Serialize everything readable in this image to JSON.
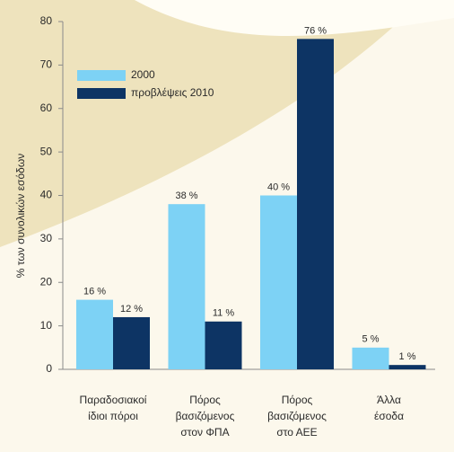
{
  "chart_data": {
    "type": "bar",
    "y_label": "% των συνολικών εσόδων",
    "categories": [
      [
        "Παραδοσιακοί",
        "ίδιοι πόροι"
      ],
      [
        "Πόρος",
        "βασιζόμενος",
        "στον ΦΠΑ"
      ],
      [
        "Πόρος",
        "βασιζόμενος",
        "στο ΑΕΕ"
      ],
      [
        "Άλλα",
        "έσοδα"
      ]
    ],
    "series": [
      {
        "name": "2000",
        "color": "#7dd2f5",
        "values": [
          16,
          38,
          40,
          5
        ],
        "value_labels": [
          "16 %",
          "38 %",
          "40 %",
          "5 %"
        ]
      },
      {
        "name": "προβλέψεις 2010",
        "color": "#0d3464",
        "values": [
          12,
          11,
          76,
          1
        ],
        "value_labels": [
          "12 %",
          "11 %",
          "76 %",
          "1 %"
        ]
      }
    ],
    "ylim": [
      0,
      80
    ],
    "yticks": [
      0,
      10,
      20,
      30,
      40,
      50,
      60,
      70,
      80
    ],
    "grid": false,
    "legend": "upper-left"
  }
}
